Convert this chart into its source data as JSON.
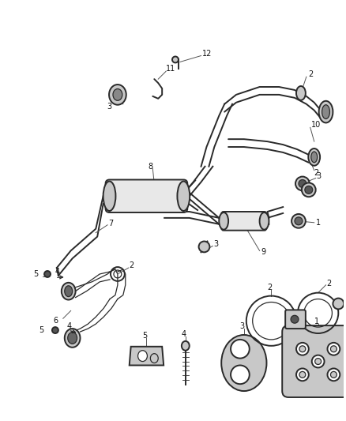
{
  "bg_color": "#ffffff",
  "line_color": "#2a2a2a",
  "gray_fill": "#c8c8c8",
  "light_fill": "#e8e8e8",
  "dark_fill": "#555555",
  "label_color": "#111111",
  "leader_color": "#555555",
  "fs": 7.0,
  "lw_main": 1.4,
  "lw_thin": 0.9,
  "lw_leader": 0.7
}
